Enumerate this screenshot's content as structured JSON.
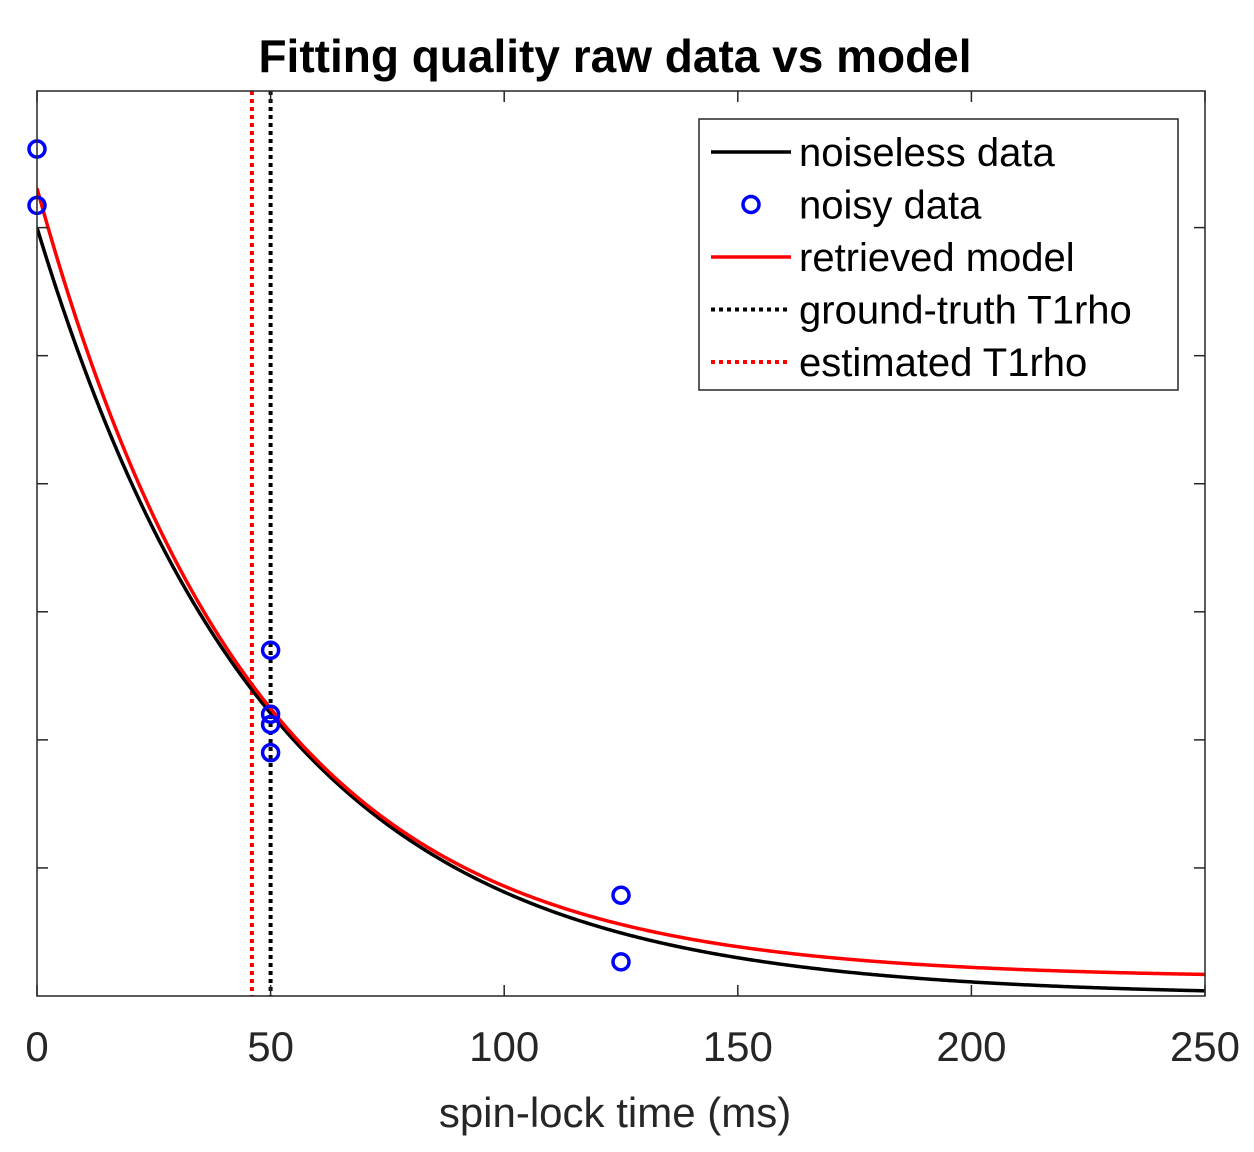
{
  "chart_data": {
    "type": "line",
    "title": "Fitting quality raw data vs model",
    "xlabel": "spin-lock time (ms)",
    "ylabel": "",
    "xlim": [
      0,
      250
    ],
    "ylim": [
      0,
      1.06
    ],
    "xticks": [
      0,
      50,
      100,
      150,
      200,
      250
    ],
    "xtick_labels": [
      "0",
      "50",
      "100",
      "150",
      "200",
      "250"
    ],
    "yticks": [
      0.15,
      0.3,
      0.45,
      0.6,
      0.75,
      0.9
    ],
    "grid": false,
    "legend_position": "top-right",
    "series": [
      {
        "name": "noiseless data",
        "kind": "line",
        "color": "#000000",
        "amplitude": 0.9,
        "t1rho": 50,
        "offset": 0
      },
      {
        "name": "noisy data",
        "kind": "scatter",
        "color": "#0000ff",
        "points": [
          [
            0,
            0.992
          ],
          [
            0,
            0.926
          ],
          [
            50,
            0.405
          ],
          [
            50,
            0.33
          ],
          [
            50,
            0.318
          ],
          [
            50,
            0.285
          ],
          [
            125,
            0.118
          ],
          [
            125,
            0.04
          ]
        ]
      },
      {
        "name": "retrieved model",
        "kind": "line",
        "color": "#ff0000",
        "amplitude": 0.925,
        "t1rho": 46.5,
        "offset": 0.021
      },
      {
        "name": "ground-truth T1rho",
        "kind": "vline",
        "color": "#000000",
        "x": 50
      },
      {
        "name": "estimated T1rho",
        "kind": "vline",
        "color": "#ff0000",
        "x": 46
      }
    ]
  }
}
